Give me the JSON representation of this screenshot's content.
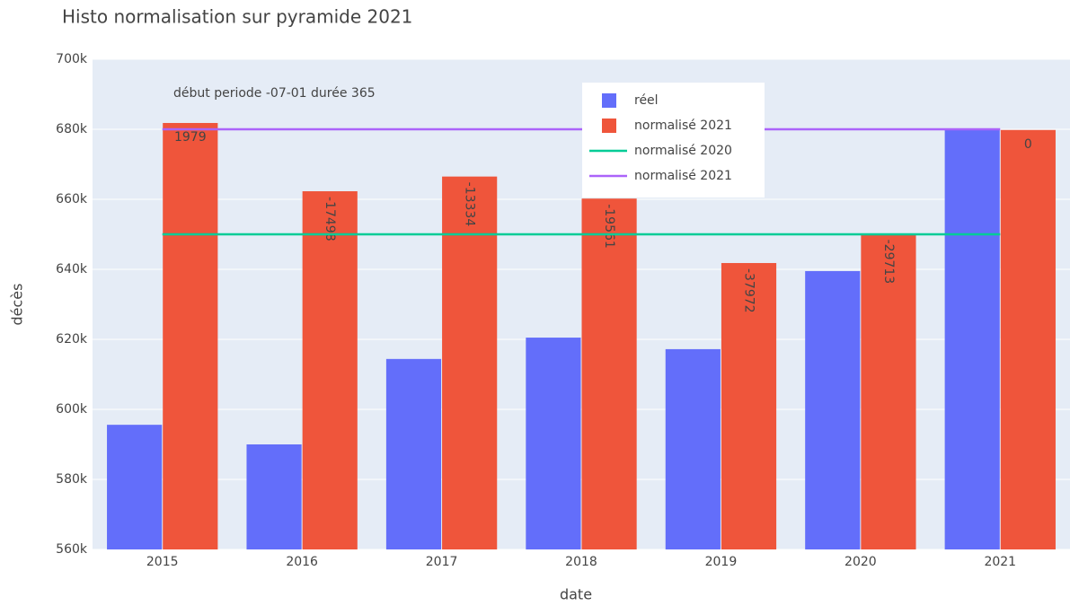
{
  "chart_data": {
    "type": "bar",
    "title": "Histo normalisation sur pyramide 2021",
    "x_label": "date",
    "y_label": "décès",
    "annotation": "début periode -07-01 durée 365",
    "categories": [
      "2015",
      "2016",
      "2017",
      "2018",
      "2019",
      "2020",
      "2021"
    ],
    "series": [
      {
        "name": "réel",
        "type": "bar",
        "color": "#636efa",
        "values": [
          595600,
          590000,
          614400,
          620500,
          617200,
          639500,
          680000
        ]
      },
      {
        "name": "normalisé 2021",
        "type": "bar",
        "color": "#ef553b",
        "values": [
          681800,
          662300,
          666500,
          660200,
          641800,
          650100,
          679800
        ],
        "text": [
          1979,
          -17498,
          -13334,
          -19561,
          -37972,
          -29713,
          0
        ]
      },
      {
        "name": "normalisé 2020",
        "type": "line",
        "color": "#00cc96",
        "values": [
          650000,
          650000,
          650000,
          650000,
          650000,
          650000,
          650000
        ]
      },
      {
        "name": "normalisé 2021",
        "type": "line",
        "color": "#ab63fa",
        "values": [
          680000,
          680000,
          680000,
          680000,
          680000,
          680000,
          680000
        ]
      }
    ],
    "ylim": [
      560000,
      700000
    ],
    "yticks": [
      {
        "value": 560000,
        "label": "560k"
      },
      {
        "value": 580000,
        "label": "580k"
      },
      {
        "value": 600000,
        "label": "600k"
      },
      {
        "value": 620000,
        "label": "620k"
      },
      {
        "value": 640000,
        "label": "640k"
      },
      {
        "value": 660000,
        "label": "660k"
      },
      {
        "value": 680000,
        "label": "680k"
      },
      {
        "value": 700000,
        "label": "700k"
      }
    ],
    "grid": true
  }
}
